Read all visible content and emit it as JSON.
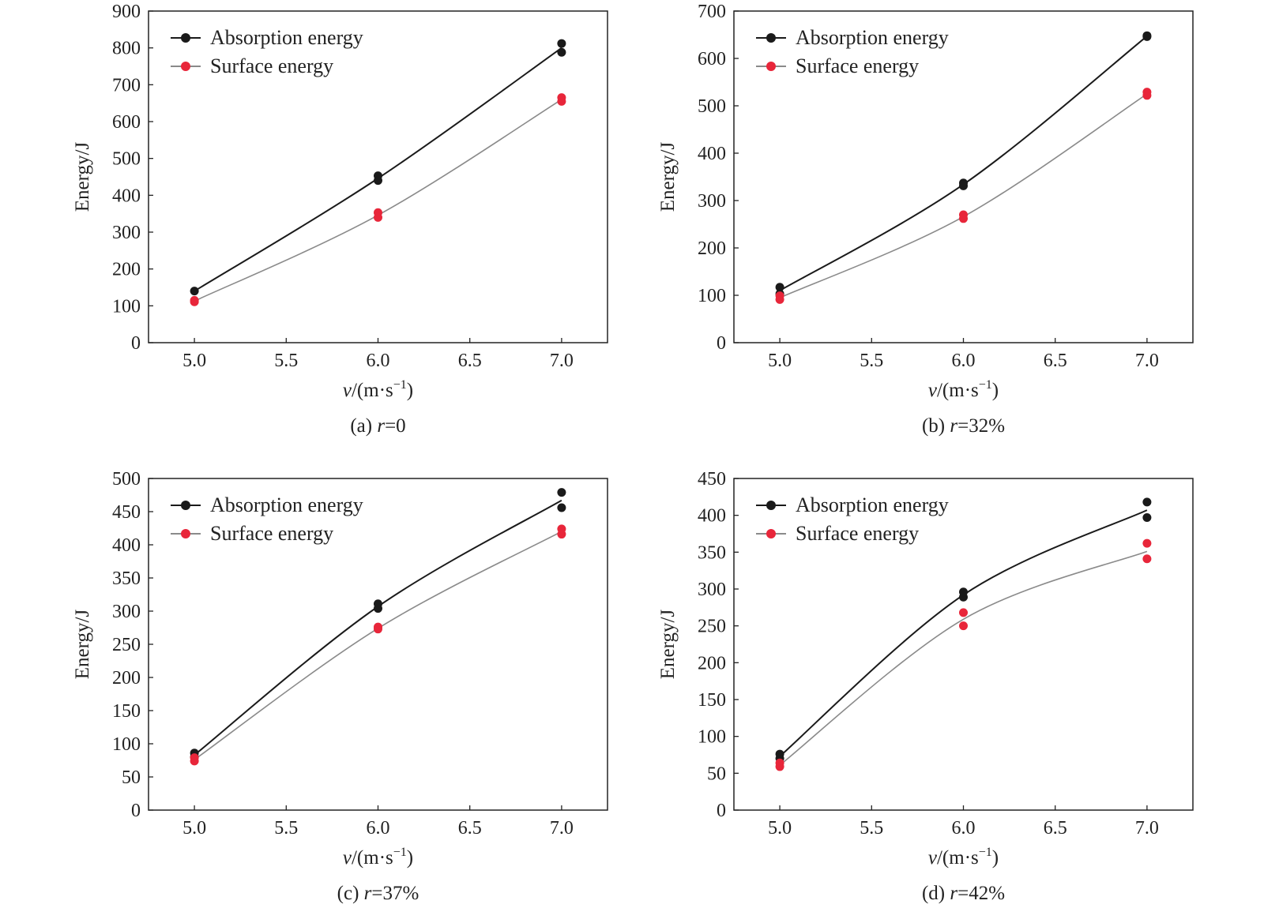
{
  "colors": {
    "absorption": "#1a1a1a",
    "surface": "#e8263a",
    "surface_line": "#8a8a8a"
  },
  "chart_data": [
    {
      "type": "line",
      "caption_prefix": "(a) ",
      "caption_var": "r",
      "caption_suffix": "=0",
      "xlabel_var": "v",
      "xlabel_unit": "/(m·s",
      "xlabel_exp": "−1",
      "xlabel_close": ")",
      "ylabel": "Energy/J",
      "xlim": [
        4.75,
        7.25
      ],
      "ylim": [
        0,
        900
      ],
      "xticks": [
        "5.0",
        "5.5",
        "6.0",
        "6.5",
        "7.0"
      ],
      "yticks": [
        "0",
        "100",
        "200",
        "300",
        "400",
        "500",
        "600",
        "700",
        "800",
        "900"
      ],
      "legend_position": "top-left",
      "series": [
        {
          "name": "Absorption energy",
          "color": "absorption",
          "points": [
            [
              5.0,
              140
            ],
            [
              6.0,
              453
            ],
            [
              6.0,
              440
            ],
            [
              7.0,
              812
            ],
            [
              7.0,
              788
            ]
          ],
          "curve": [
            [
              5.0,
              140
            ],
            [
              6.0,
              446
            ],
            [
              7.0,
              800
            ]
          ]
        },
        {
          "name": "Surface energy",
          "color": "surface",
          "points": [
            [
              5.0,
              115
            ],
            [
              5.0,
              111
            ],
            [
              6.0,
              353
            ],
            [
              6.0,
              340
            ],
            [
              7.0,
              665
            ],
            [
              7.0,
              655
            ]
          ],
          "curve": [
            [
              5.0,
              113
            ],
            [
              6.0,
              346
            ],
            [
              7.0,
              660
            ]
          ]
        }
      ]
    },
    {
      "type": "line",
      "caption_prefix": "(b) ",
      "caption_var": "r",
      "caption_suffix": "=32%",
      "xlabel_var": "v",
      "xlabel_unit": "/(m·s",
      "xlabel_exp": "−1",
      "xlabel_close": ")",
      "ylabel": "Energy/J",
      "xlim": [
        4.75,
        7.25
      ],
      "ylim": [
        0,
        700
      ],
      "xticks": [
        "5.0",
        "5.5",
        "6.0",
        "6.5",
        "7.0"
      ],
      "yticks": [
        "0",
        "100",
        "200",
        "300",
        "400",
        "500",
        "600",
        "700"
      ],
      "legend_position": "top-left",
      "series": [
        {
          "name": "Absorption energy",
          "color": "absorption",
          "points": [
            [
              5.0,
              117
            ],
            [
              5.0,
              103
            ],
            [
              6.0,
              337
            ],
            [
              6.0,
              331
            ],
            [
              7.0,
              648
            ],
            [
              7.0,
              646
            ]
          ],
          "curve": [
            [
              5.0,
              110
            ],
            [
              6.0,
              334
            ],
            [
              7.0,
              647
            ]
          ]
        },
        {
          "name": "Surface energy",
          "color": "surface",
          "points": [
            [
              5.0,
              99
            ],
            [
              5.0,
              91
            ],
            [
              6.0,
              270
            ],
            [
              6.0,
              262
            ],
            [
              7.0,
              529
            ],
            [
              7.0,
              522
            ]
          ],
          "curve": [
            [
              5.0,
              95
            ],
            [
              6.0,
              266
            ],
            [
              7.0,
              525
            ]
          ]
        }
      ]
    },
    {
      "type": "line",
      "caption_prefix": "(c) ",
      "caption_var": "r",
      "caption_suffix": "=37%",
      "xlabel_var": "v",
      "xlabel_unit": "/(m·s",
      "xlabel_exp": "−1",
      "xlabel_close": ")",
      "ylabel": "Energy/J",
      "xlim": [
        4.75,
        7.25
      ],
      "ylim": [
        0,
        500
      ],
      "xticks": [
        "5.0",
        "5.5",
        "6.0",
        "6.5",
        "7.0"
      ],
      "yticks": [
        "0",
        "50",
        "100",
        "150",
        "200",
        "250",
        "300",
        "350",
        "400",
        "450",
        "500"
      ],
      "legend_position": "top-left",
      "series": [
        {
          "name": "Absorption energy",
          "color": "absorption",
          "points": [
            [
              5.0,
              86
            ],
            [
              5.0,
              80
            ],
            [
              6.0,
              311
            ],
            [
              6.0,
              304
            ],
            [
              7.0,
              479
            ],
            [
              7.0,
              456
            ]
          ],
          "curve": [
            [
              5.0,
              83
            ],
            [
              6.0,
              307
            ],
            [
              7.0,
              467
            ]
          ]
        },
        {
          "name": "Surface energy",
          "color": "surface",
          "points": [
            [
              5.0,
              79
            ],
            [
              5.0,
              74
            ],
            [
              6.0,
              276
            ],
            [
              6.0,
              273
            ],
            [
              7.0,
              424
            ],
            [
              7.0,
              416
            ]
          ],
          "curve": [
            [
              5.0,
              76
            ],
            [
              6.0,
              274
            ],
            [
              7.0,
              420
            ]
          ]
        }
      ]
    },
    {
      "type": "line",
      "caption_prefix": "(d) ",
      "caption_var": "r",
      "caption_suffix": "=42%",
      "xlabel_var": "v",
      "xlabel_unit": "/(m·s",
      "xlabel_exp": "−1",
      "xlabel_close": ")",
      "ylabel": "Energy/J",
      "xlim": [
        4.75,
        7.25
      ],
      "ylim": [
        0,
        450
      ],
      "xticks": [
        "5.0",
        "5.5",
        "6.0",
        "6.5",
        "7.0"
      ],
      "yticks": [
        "0",
        "50",
        "100",
        "150",
        "200",
        "250",
        "300",
        "350",
        "400",
        "450"
      ],
      "legend_position": "top-left",
      "series": [
        {
          "name": "Absorption energy",
          "color": "absorption",
          "points": [
            [
              5.0,
              76
            ],
            [
              5.0,
              70
            ],
            [
              6.0,
              296
            ],
            [
              6.0,
              289
            ],
            [
              7.0,
              418
            ],
            [
              7.0,
              397
            ]
          ],
          "curve": [
            [
              5.0,
              73
            ],
            [
              6.0,
              292
            ],
            [
              7.0,
              407
            ]
          ]
        },
        {
          "name": "Surface energy",
          "color": "surface",
          "points": [
            [
              5.0,
              64
            ],
            [
              5.0,
              59
            ],
            [
              6.0,
              268
            ],
            [
              6.0,
              250
            ],
            [
              7.0,
              362
            ],
            [
              7.0,
              341
            ]
          ],
          "curve": [
            [
              5.0,
              61
            ],
            [
              6.0,
              259
            ],
            [
              7.0,
              351
            ]
          ]
        }
      ]
    }
  ]
}
